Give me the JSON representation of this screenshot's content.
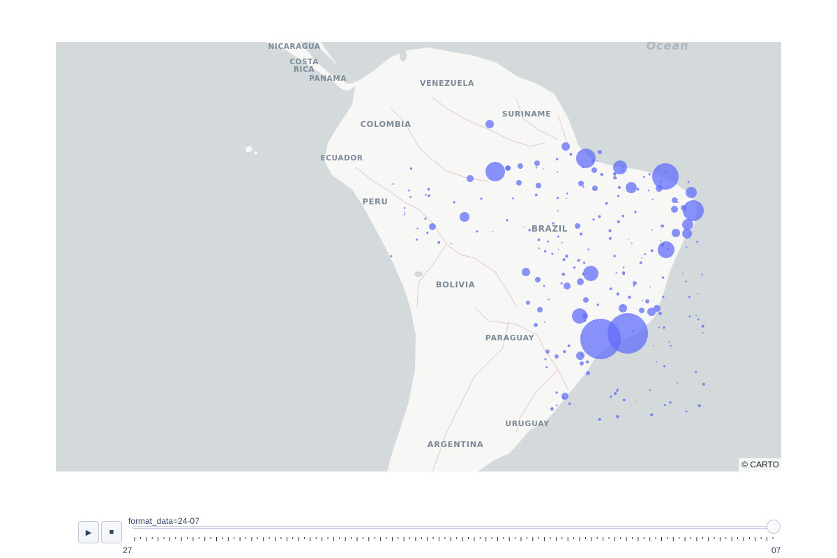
{
  "map": {
    "attribution": "© CARTO",
    "bubble_color": "#636efa",
    "land_color": "#f7f7f6",
    "ocean_color": "#d4dadc",
    "border_color": "#e9c7cb",
    "labels": {
      "nicaragua": "NICARAGUA",
      "costa_rica_1": "COSTA",
      "costa_rica_2": "RICA",
      "panama": "PANAMA",
      "venezuela": "VENEZUELA",
      "suriname": "SURINAME",
      "colombia": "COLOMBIA",
      "ecuador": "ECUADOR",
      "peru": "PERU",
      "brazil": "BRAZIL",
      "bolivia": "BOLIVIA",
      "paraguay": "PARAGUAY",
      "uruguay": "URUGUAY",
      "argentina": "ARGENTINA",
      "ocean": "Ocean"
    }
  },
  "animation": {
    "play_icon": "play-icon",
    "stop_icon": "stop-icon",
    "current_label": "format_data=24-07",
    "first_tick": "27",
    "last_tick": "07",
    "tick_count": 110
  }
}
